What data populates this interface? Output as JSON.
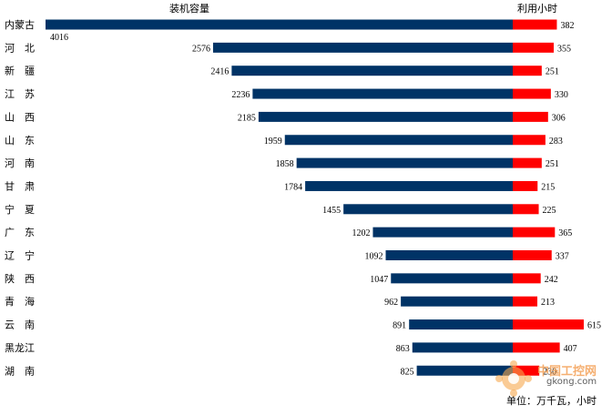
{
  "chart_data": {
    "type": "bar",
    "categories": [
      "内蒙古",
      "河　北",
      "新　疆",
      "江　苏",
      "山　西",
      "山　东",
      "河　南",
      "甘　肃",
      "宁　夏",
      "广　东",
      "辽　宁",
      "陕　西",
      "青　海",
      "云　南",
      "黑龙江",
      "湖　南"
    ],
    "series": [
      {
        "name": "装机容量",
        "values": [
          4016,
          2576,
          2416,
          2236,
          2185,
          1959,
          1858,
          1784,
          1455,
          1202,
          1092,
          1047,
          962,
          891,
          863,
          825
        ],
        "color": "#003366"
      },
      {
        "name": "利用小时",
        "values": [
          382,
          355,
          251,
          330,
          306,
          283,
          251,
          215,
          225,
          365,
          337,
          242,
          213,
          615,
          407,
          230
        ],
        "color": "#ff0000"
      }
    ],
    "title": "",
    "unit_label": "单位：万千瓦，小时",
    "xlabel": "",
    "ylabel": ""
  },
  "watermark": {
    "text1": "中国工控网",
    "text2": "gkong.com"
  }
}
